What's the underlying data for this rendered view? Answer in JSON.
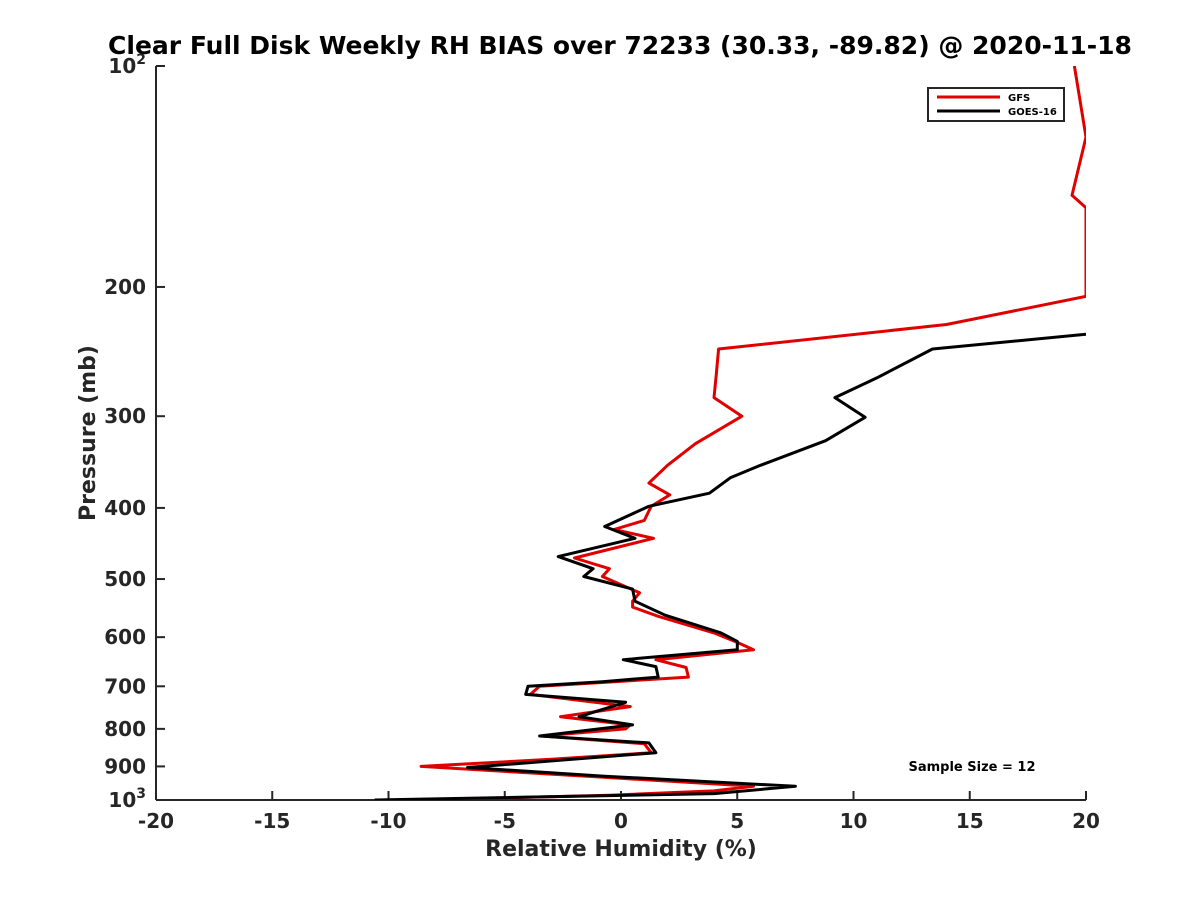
{
  "chart_data": {
    "type": "line",
    "title": "Clear Full Disk Weekly RH BIAS over 72233 (30.33, -89.82) @ 2020-11-18",
    "xlabel": "Relative Humidity (%)",
    "ylabel": "Pressure (mb)",
    "xlim": [
      -20,
      20
    ],
    "ylim": [
      100,
      1000
    ],
    "y_scale": "log",
    "y_reversed": true,
    "grid": false,
    "legend_position": "top-right",
    "x_ticks": [
      "-20",
      "-15",
      "-10",
      "-5",
      "0",
      "5",
      "10",
      "15",
      "20"
    ],
    "y_ticks": [
      {
        "value": 100,
        "base": "10",
        "exp": "2"
      },
      {
        "value": 200,
        "label": "200"
      },
      {
        "value": 300,
        "label": "300"
      },
      {
        "value": 400,
        "label": "400"
      },
      {
        "value": 500,
        "label": "500"
      },
      {
        "value": 600,
        "label": "600"
      },
      {
        "value": 700,
        "label": "700"
      },
      {
        "value": 800,
        "label": "800"
      },
      {
        "value": 900,
        "label": "900"
      },
      {
        "value": 1000,
        "base": "10",
        "exp": "3"
      }
    ],
    "annotation": "Sample Size = 12",
    "series": [
      {
        "name": "GFS",
        "color": "#e00000",
        "points": [
          [
            19.5,
            100
          ],
          [
            20.0,
            125
          ],
          [
            19.4,
            150
          ],
          [
            20.0,
            156
          ],
          [
            20.0,
            206
          ],
          [
            14.0,
            225
          ],
          [
            4.2,
            243
          ],
          [
            4.1,
            263
          ],
          [
            4.0,
            283
          ],
          [
            5.2,
            300
          ],
          [
            3.2,
            327
          ],
          [
            2.0,
            350
          ],
          [
            1.2,
            370
          ],
          [
            2.1,
            384
          ],
          [
            1.3,
            398
          ],
          [
            1.0,
            416
          ],
          [
            -0.3,
            428
          ],
          [
            1.4,
            440
          ],
          [
            -2.0,
            468
          ],
          [
            -0.5,
            484
          ],
          [
            -0.8,
            496
          ],
          [
            0.8,
            522
          ],
          [
            0.5,
            536
          ],
          [
            0.5,
            546
          ],
          [
            1.6,
            562
          ],
          [
            4.0,
            592
          ],
          [
            5.0,
            610
          ],
          [
            5.7,
            624
          ],
          [
            1.5,
            644
          ],
          [
            2.8,
            660
          ],
          [
            2.9,
            680
          ],
          [
            -0.3,
            690
          ],
          [
            -3.5,
            700
          ],
          [
            -3.9,
            718
          ],
          [
            -2.0,
            730
          ],
          [
            0.4,
            746
          ],
          [
            -2.6,
            770
          ],
          [
            0.4,
            790
          ],
          [
            0.2,
            800
          ],
          [
            -3.4,
            818
          ],
          [
            1.0,
            838
          ],
          [
            1.3,
            862
          ],
          [
            -3.0,
            880
          ],
          [
            -8.6,
            900
          ],
          [
            -1.0,
            930
          ],
          [
            5.7,
            958
          ],
          [
            4.0,
            972
          ],
          [
            -0.5,
            985
          ],
          [
            -8.7,
            1000
          ]
        ]
      },
      {
        "name": "GOES-16",
        "color": "#000000",
        "points": [
          [
            20.0,
            232
          ],
          [
            13.4,
            243
          ],
          [
            11.0,
            266
          ],
          [
            9.2,
            283
          ],
          [
            10.5,
            301
          ],
          [
            8.8,
            324
          ],
          [
            6.0,
            350
          ],
          [
            4.7,
            364
          ],
          [
            3.8,
            382
          ],
          [
            1.2,
            398
          ],
          [
            -0.7,
            424
          ],
          [
            0.6,
            440
          ],
          [
            -2.7,
            466
          ],
          [
            -1.2,
            484
          ],
          [
            -1.6,
            496
          ],
          [
            0.5,
            516
          ],
          [
            0.6,
            536
          ],
          [
            1.9,
            560
          ],
          [
            4.3,
            592
          ],
          [
            5.0,
            608
          ],
          [
            5.0,
            624
          ],
          [
            0.1,
            644
          ],
          [
            1.5,
            658
          ],
          [
            1.6,
            680
          ],
          [
            -0.8,
            690
          ],
          [
            -4.0,
            700
          ],
          [
            -4.1,
            718
          ],
          [
            0.2,
            736
          ],
          [
            -1.8,
            770
          ],
          [
            0.5,
            790
          ],
          [
            -3.5,
            818
          ],
          [
            1.2,
            836
          ],
          [
            1.5,
            862
          ],
          [
            -6.6,
            903
          ],
          [
            -0.7,
            928
          ],
          [
            7.5,
            958
          ],
          [
            4.0,
            980
          ],
          [
            -10.6,
            1000
          ]
        ]
      }
    ]
  }
}
